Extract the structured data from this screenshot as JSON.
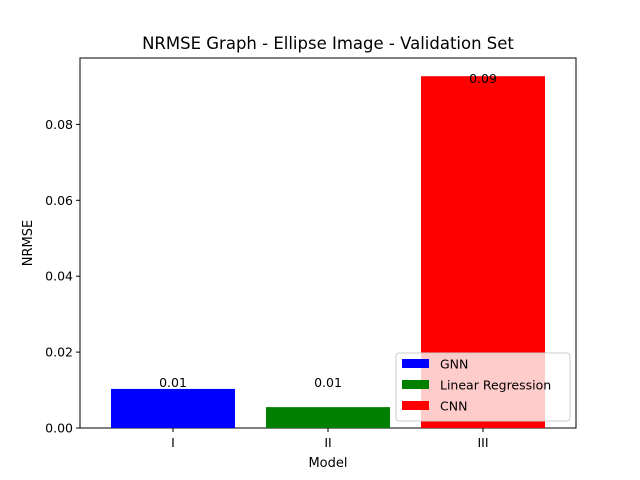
{
  "chart_data": {
    "type": "bar",
    "title": "NRMSE Graph - Ellipse Image - Validation Set",
    "xlabel": "Model",
    "ylabel": "NRMSE",
    "categories": [
      "I",
      "II",
      "III"
    ],
    "values": [
      0.0103,
      0.0055,
      0.0927
    ],
    "bar_labels": [
      "0.01",
      "0.01",
      "0.09"
    ],
    "series": [
      {
        "name": "GNN",
        "color": "#0000ff"
      },
      {
        "name": "Linear Regression",
        "color": "#008000"
      },
      {
        "name": "CNN",
        "color": "#ff0000"
      }
    ],
    "ylim": [
      0,
      0.0975
    ],
    "yticks": [
      0.0,
      0.02,
      0.04,
      0.06,
      0.08
    ],
    "ytick_labels": [
      "0.00",
      "0.02",
      "0.04",
      "0.06",
      "0.08"
    ],
    "grid": false,
    "legend_position": "lower right"
  }
}
